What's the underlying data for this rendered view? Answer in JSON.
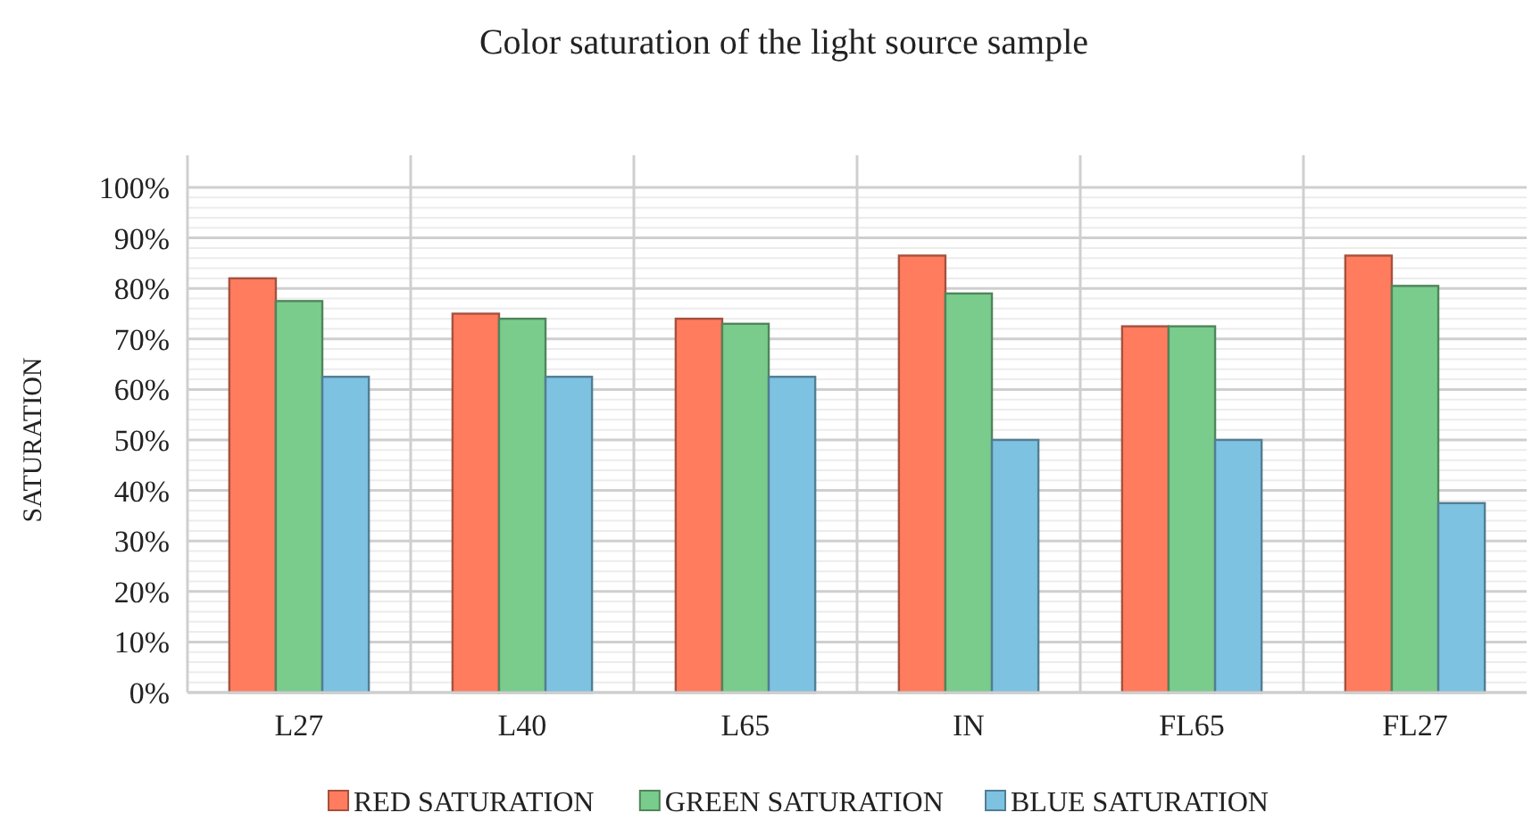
{
  "chart_data": {
    "type": "bar",
    "title": "Color saturation of the light source sample",
    "ylabel": "SATURATION",
    "categories": [
      "L27",
      "L40",
      "L65",
      "IN",
      "FL65",
      "FL27"
    ],
    "series": [
      {
        "name": "RED SATURATION",
        "color": "#ff7c5f",
        "values": [
          82,
          75,
          74,
          86.5,
          72.5,
          86.5
        ]
      },
      {
        "name": "GREEN SATURATION",
        "color": "#7acc8c",
        "values": [
          77.5,
          74,
          73,
          79,
          72.5,
          80.5
        ]
      },
      {
        "name": "BLUE SATURATION",
        "color": "#7ec2e2",
        "values": [
          62.5,
          62.5,
          62.5,
          50,
          50,
          37.5
        ]
      }
    ],
    "ylim": [
      0,
      100
    ],
    "yticks": [
      {
        "value": 0,
        "label": "0%"
      },
      {
        "value": 2,
        "label": null
      },
      {
        "value": 4,
        "label": null
      },
      {
        "value": 6,
        "label": null
      },
      {
        "value": 8,
        "label": null
      },
      {
        "value": 10,
        "label": "10%"
      },
      {
        "value": 12,
        "label": null
      },
      {
        "value": 14,
        "label": null
      },
      {
        "value": 16,
        "label": null
      },
      {
        "value": 18,
        "label": null
      },
      {
        "value": 20,
        "label": "20%"
      },
      {
        "value": 22,
        "label": null
      },
      {
        "value": 24,
        "label": null
      },
      {
        "value": 26,
        "label": null
      },
      {
        "value": 28,
        "label": null
      },
      {
        "value": 30,
        "label": "30%"
      },
      {
        "value": 32,
        "label": null
      },
      {
        "value": 34,
        "label": null
      },
      {
        "value": 36,
        "label": null
      },
      {
        "value": 38,
        "label": null
      },
      {
        "value": 40,
        "label": "40%"
      },
      {
        "value": 42,
        "label": null
      },
      {
        "value": 44,
        "label": null
      },
      {
        "value": 46,
        "label": null
      },
      {
        "value": 48,
        "label": null
      },
      {
        "value": 50,
        "label": "50%"
      },
      {
        "value": 52,
        "label": null
      },
      {
        "value": 54,
        "label": null
      },
      {
        "value": 56,
        "label": null
      },
      {
        "value": 58,
        "label": null
      },
      {
        "value": 60,
        "label": "60%"
      },
      {
        "value": 62,
        "label": null
      },
      {
        "value": 64,
        "label": null
      },
      {
        "value": 66,
        "label": null
      },
      {
        "value": 68,
        "label": null
      },
      {
        "value": 70,
        "label": "70%"
      },
      {
        "value": 72,
        "label": null
      },
      {
        "value": 74,
        "label": null
      },
      {
        "value": 76,
        "label": null
      },
      {
        "value": 78,
        "label": null
      },
      {
        "value": 80,
        "label": "80%"
      },
      {
        "value": 82,
        "label": null
      },
      {
        "value": 84,
        "label": null
      },
      {
        "value": 86,
        "label": null
      },
      {
        "value": 88,
        "label": null
      },
      {
        "value": 90,
        "label": "90%"
      },
      {
        "value": 92,
        "label": null
      },
      {
        "value": 94,
        "label": null
      },
      {
        "value": 96,
        "label": null
      },
      {
        "value": 98,
        "label": null
      },
      {
        "value": 100,
        "label": "100%"
      }
    ],
    "grid": true,
    "legend": "bottom"
  }
}
